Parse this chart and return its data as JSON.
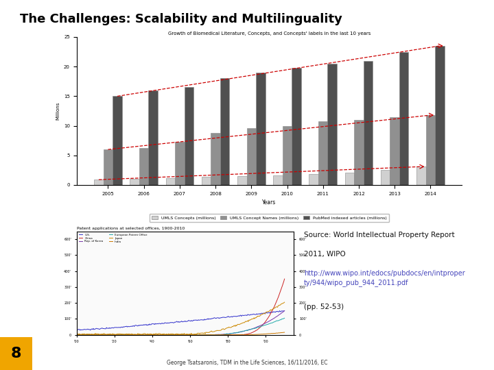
{
  "title": "The Challenges: Scalability and Multilinguality",
  "title_fontsize": 13,
  "title_fontweight": "bold",
  "background_color": "#ffffff",
  "slide_number": "8",
  "slide_number_bg": "#f0a500",
  "footer_text": "George Tsatsaronis, TDM in the Life Sciences, 16/11/2016, EC",
  "top_chart_title": "Growth of Biomedical Literature, Concepts, and Concepts' labels in the last 10 years",
  "top_chart_years": [
    "2005",
    "2006",
    "2007",
    "2008",
    "2009",
    "2010",
    "2011",
    "2012",
    "2013",
    "2014"
  ],
  "top_chart_umls_concepts": [
    0.9,
    1.0,
    1.1,
    1.4,
    1.5,
    1.6,
    1.8,
    2.1,
    2.5,
    3.1
  ],
  "top_chart_umls_names": [
    6.0,
    6.2,
    7.3,
    8.8,
    9.6,
    10.0,
    10.8,
    11.0,
    11.5,
    11.8
  ],
  "top_chart_pubmed": [
    15.0,
    16.0,
    16.5,
    18.0,
    19.0,
    19.8,
    20.5,
    21.0,
    22.5,
    23.5
  ],
  "bottom_chart_title": "Patent applications at selected offices, 1900-2010",
  "source_text1": "Source: World Intellectual Property Report",
  "source_text2": "2011, WIPO",
  "source_link": "http://www.wipo.int/edocs/pubdocs/en/intproper\nty/944/wipo_pub_944_2011.pdf",
  "source_pages": "(pp. 52-53)",
  "legend_items": [
    "UMLS Concepts (millions)",
    "UMLS Concept Names (millions)",
    "PubMed indexed articles (millions)"
  ],
  "bar_color_1": "#d0d0d0",
  "bar_color_2": "#909090",
  "bar_color_3": "#505050",
  "red_dashed_color": "#cc0000"
}
